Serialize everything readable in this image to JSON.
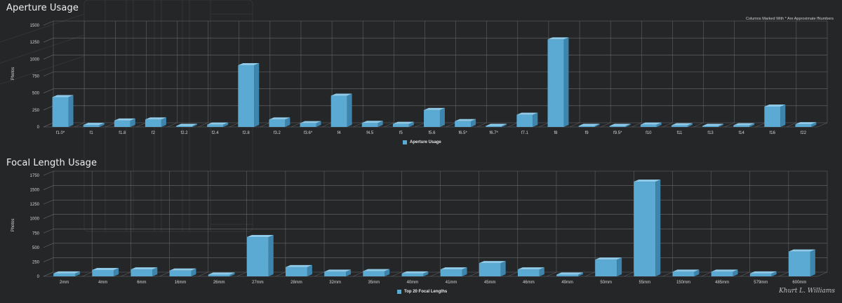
{
  "charts": [
    {
      "title": "Aperture Usage",
      "note": "Columns Marked With * Are Approximate fNumbers",
      "ylabel": "Photos",
      "legend": "Aperture Usage"
    },
    {
      "title": "Focal Length Usage",
      "note": "",
      "ylabel": "Photos",
      "legend": "Top 20 Focal Lengths"
    }
  ],
  "signature": "Khurt L. Williams",
  "colors": {
    "bar_front": "#5aaad4",
    "bar_side": "#3d85ad",
    "bar_top": "#8fcbe8",
    "grid": "#6a6b6e",
    "background": "#252628"
  },
  "chart_data": [
    {
      "type": "bar",
      "title": "Aperture Usage",
      "xlabel": "",
      "ylabel": "Photos",
      "ylim": [
        0,
        1500
      ],
      "yticks": [
        0,
        250,
        500,
        750,
        1000,
        1250,
        1500
      ],
      "grid": true,
      "legend_position": "bottom",
      "categories": [
        "f1.0*",
        "f1",
        "f1.8",
        "f2",
        "f2.2",
        "f2.4",
        "f2.8",
        "f3.2",
        "f3.6*",
        "f4",
        "f4.5",
        "f5",
        "f5.6",
        "f6.5*",
        "f6.7*",
        "f7.1",
        "f8",
        "f9",
        "f9.5*",
        "f10",
        "f11",
        "f13",
        "f14",
        "f16",
        "f22"
      ],
      "series": [
        {
          "name": "Aperture Usage",
          "values": [
            440,
            30,
            95,
            110,
            10,
            35,
            910,
            110,
            55,
            460,
            60,
            45,
            250,
            85,
            15,
            180,
            1290,
            15,
            15,
            35,
            25,
            10,
            25,
            300,
            40
          ]
        }
      ]
    },
    {
      "type": "bar",
      "title": "Focal Length Usage",
      "xlabel": "",
      "ylabel": "Photos",
      "ylim": [
        0,
        1750
      ],
      "yticks": [
        0,
        250,
        500,
        750,
        1000,
        1250,
        1500,
        1750
      ],
      "grid": true,
      "legend_position": "bottom",
      "categories": [
        "2mm",
        "4mm",
        "6mm",
        "16mm",
        "26mm",
        "27mm",
        "28mm",
        "32mm",
        "35mm",
        "40mm",
        "41mm",
        "45mm",
        "46mm",
        "49mm",
        "50mm",
        "55mm",
        "150mm",
        "485mm",
        "579mm",
        "600mm"
      ],
      "series": [
        {
          "name": "Top 20 Focal Lengths",
          "values": [
            50,
            110,
            120,
            100,
            30,
            680,
            160,
            80,
            90,
            50,
            120,
            230,
            120,
            30,
            290,
            1640,
            80,
            80,
            50,
            430
          ]
        }
      ]
    }
  ]
}
